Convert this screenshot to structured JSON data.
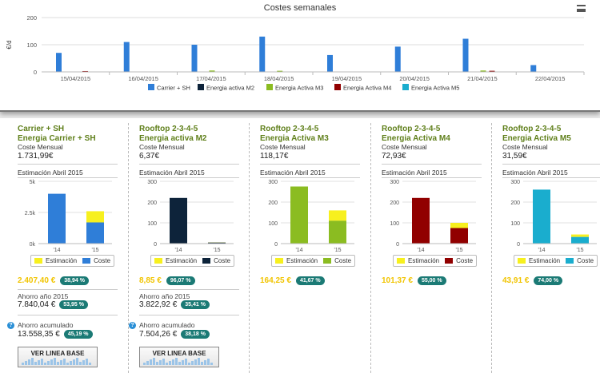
{
  "weekly": {
    "title": "Costes semanales",
    "ylabel": "€/d",
    "yticks": [
      "200",
      "100",
      "0"
    ],
    "dates": [
      "15/04/2015",
      "16/04/2015",
      "17/04/2015",
      "18/04/2015",
      "19/04/2015",
      "20/04/2015",
      "21/04/2015",
      "22/04/2015"
    ],
    "legend": [
      {
        "name": "Carrier + SH",
        "color": "#2f7ed8"
      },
      {
        "name": "Energia activa M2",
        "color": "#0d233a"
      },
      {
        "name": "Energia Activa M3",
        "color": "#8bbc21"
      },
      {
        "name": "Energia Activa M4",
        "color": "#910000"
      },
      {
        "name": "Energia Activa M5",
        "color": "#1aadce"
      }
    ]
  },
  "chart_data": {
    "type": "bar",
    "title": "Costes semanales",
    "ylabel": "€/d",
    "ylim": [
      0,
      200
    ],
    "categories": [
      "15/04/2015",
      "16/04/2015",
      "17/04/2015",
      "18/04/2015",
      "19/04/2015",
      "20/04/2015",
      "21/04/2015",
      "22/04/2015"
    ],
    "series": [
      {
        "name": "Carrier + SH",
        "color": "#2f7ed8",
        "values": [
          70,
          110,
          100,
          130,
          62,
          93,
          122,
          25
        ]
      },
      {
        "name": "Energia activa M2",
        "color": "#0d233a",
        "values": [
          0,
          0,
          0,
          0,
          0,
          0,
          0,
          0
        ]
      },
      {
        "name": "Energia Activa M3",
        "color": "#8bbc21",
        "values": [
          0,
          0,
          5,
          4,
          0,
          0,
          5,
          0
        ]
      },
      {
        "name": "Energia Activa M4",
        "color": "#910000",
        "values": [
          3,
          0,
          0,
          0,
          0,
          0,
          4,
          0
        ]
      },
      {
        "name": "Energia Activa M5",
        "color": "#1aadce",
        "values": [
          0,
          0,
          0,
          0,
          0,
          0,
          0,
          0
        ]
      }
    ]
  },
  "cards": [
    {
      "title1": "Carrier + SH",
      "title2": "Energia Carrier + SH",
      "coste_label": "Coste Mensual",
      "coste_value": "1.731,99€",
      "est_label": "Estimación Abril 2015",
      "yticks": [
        "5k",
        "2.5k",
        "0k"
      ],
      "ymax": 5000,
      "bar14": 4000,
      "bar15_coste": 1700,
      "bar15_est": 2600,
      "xlabels": [
        "'14",
        "'15"
      ],
      "color": "#2f7ed8",
      "legend_est": "Estimación",
      "legend_coste": "Coste",
      "pct_value": "2.407,40 €",
      "pct_badge": "38,94 %",
      "ahorro_anio_label": "Ahorro año 2015",
      "ahorro_anio_value": "7.840,04 €",
      "ahorro_anio_badge": "53,95 %",
      "ahorro_acum_label": "Ahorro acumulado",
      "ahorro_acum_value": "13.558,35 €",
      "ahorro_acum_badge": "45,19 %",
      "button": "VER LINEA BASE"
    },
    {
      "title1": "Rooftop 2-3-4-5",
      "title2": "Energia activa M2",
      "coste_label": "Coste Mensual",
      "coste_value": "6,37€",
      "est_label": "Estimación Abril 2015",
      "yticks": [
        "300",
        "200",
        "100",
        "0"
      ],
      "ymax": 300,
      "bar14": 220,
      "bar15_coste": 5,
      "bar15_est": 6,
      "xlabels": [
        "'14",
        "'15"
      ],
      "color": "#0d233a",
      "legend_est": "Estimación",
      "legend_coste": "Coste",
      "pct_value": "8,85 €",
      "pct_badge": "96,07 %",
      "ahorro_anio_label": "Ahorro año 2015",
      "ahorro_anio_value": "3.822,92 €",
      "ahorro_anio_badge": "35,41 %",
      "ahorro_acum_label": "Ahorro acumulado",
      "ahorro_acum_value": "7.504,26 €",
      "ahorro_acum_badge": "38,18 %",
      "button": "VER LINEA BASE"
    },
    {
      "title1": "Rooftop 2-3-4-5",
      "title2": "Energia Activa M3",
      "coste_label": "Coste Mensual",
      "coste_value": "118,17€",
      "est_label": "Estimación Abril 2015",
      "yticks": [
        "300",
        "200",
        "100",
        "0"
      ],
      "ymax": 300,
      "bar14": 275,
      "bar15_coste": 110,
      "bar15_est": 160,
      "xlabels": [
        "'14",
        "'15"
      ],
      "color": "#8bbc21",
      "legend_est": "Estimación",
      "legend_coste": "Coste",
      "pct_value": "164,25 €",
      "pct_badge": "41,67 %"
    },
    {
      "title1": "Rooftop 2-3-4-5",
      "title2": "Energia Activa M4",
      "coste_label": "Coste Mensual",
      "coste_value": "72,93€",
      "est_label": "Estimación Abril 2015",
      "yticks": [
        "300",
        "200",
        "100",
        "0"
      ],
      "ymax": 300,
      "bar14": 220,
      "bar15_coste": 75,
      "bar15_est": 100,
      "xlabels": [
        "'14",
        "'15"
      ],
      "color": "#910000",
      "legend_est": "Estimación",
      "legend_coste": "Coste",
      "pct_value": "101,37 €",
      "pct_badge": "55,00 %"
    },
    {
      "title1": "Rooftop 2-3-4-5",
      "title2": "Energia Activa M5",
      "coste_label": "Coste Mensual",
      "coste_value": "31,59€",
      "est_label": "Estimación Abril 2015",
      "yticks": [
        "300",
        "200",
        "100",
        "0"
      ],
      "ymax": 300,
      "bar14": 260,
      "bar15_coste": 32,
      "bar15_est": 44,
      "xlabels": [
        "'14",
        "'15"
      ],
      "color": "#1aadce",
      "legend_est": "Estimación",
      "legend_coste": "Coste",
      "pct_value": "43,91 €",
      "pct_badge": "74,00 %"
    }
  ],
  "colors": {
    "estimacion": "#f7f01e",
    "badge": "#1b7a75",
    "title": "#5f7f1a"
  }
}
